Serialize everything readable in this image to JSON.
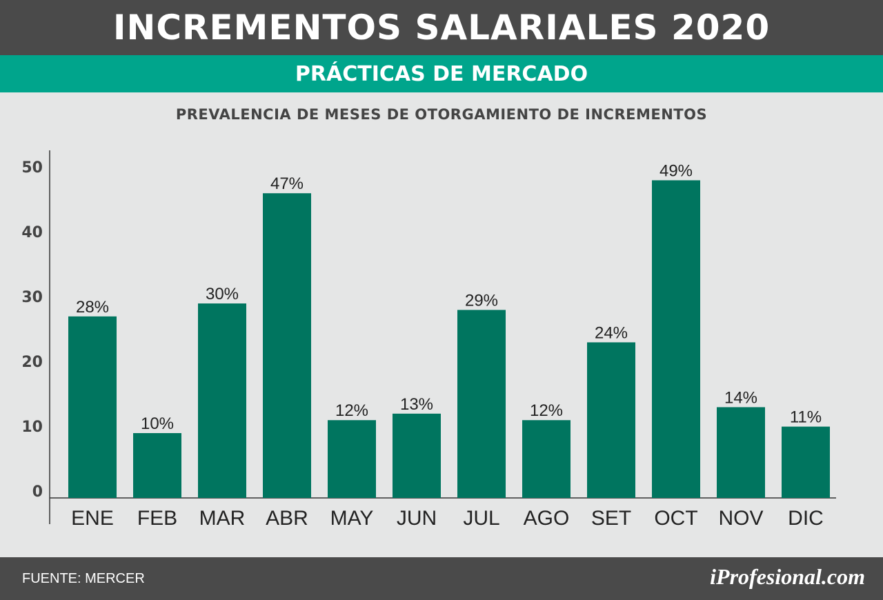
{
  "header": {
    "title": "INCREMENTOS SALARIALES 2020",
    "subtitle": "PRÁCTICAS DE MERCADO"
  },
  "footer": {
    "source": "FUENTE: MERCER",
    "brand": "iProfesional.com"
  },
  "colors": {
    "bar": "#00755f",
    "header": "#4a4a4a",
    "accent": "#00a58c",
    "background": "#e5e6e6"
  },
  "chart_data": {
    "type": "bar",
    "title": "PREVALENCIA DE MESES DE OTORGAMIENTO DE INCREMENTOS",
    "categories": [
      "ENE",
      "FEB",
      "MAR",
      "ABR",
      "MAY",
      "JUN",
      "JUL",
      "AGO",
      "SET",
      "OCT",
      "NOV",
      "DIC"
    ],
    "values": [
      28,
      10,
      30,
      47,
      12,
      13,
      29,
      12,
      24,
      49,
      14,
      11
    ],
    "labels": [
      "28%",
      "10%",
      "30%",
      "47%",
      "12%",
      "13%",
      "29%",
      "12%",
      "24%",
      "49%",
      "14%",
      "11%"
    ],
    "yticks": [
      0,
      10,
      20,
      30,
      40,
      50
    ],
    "ylim": [
      0,
      53
    ],
    "grid": false,
    "legend": "none"
  }
}
